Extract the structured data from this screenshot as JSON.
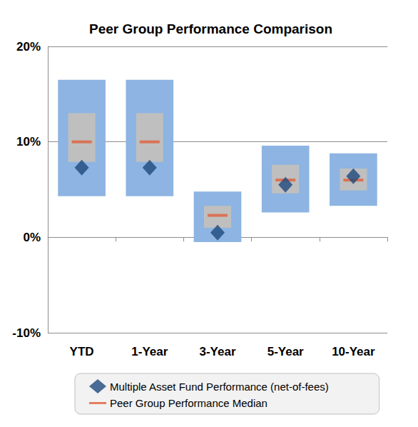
{
  "chart_data": {
    "type": "range_bar",
    "title": "Peer Group Performance Comparison",
    "categories": [
      "YTD",
      "1-Year",
      "3-Year",
      "5-Year",
      "10-Year"
    ],
    "ranges": [
      {
        "color": "#8DB4E2",
        "low": [
          4.3,
          4.3,
          -0.5,
          2.6,
          3.3
        ],
        "high": [
          16.5,
          16.5,
          4.8,
          9.6,
          8.8
        ]
      },
      {
        "color": "#BFBFBF",
        "low": [
          7.9,
          7.9,
          1.0,
          4.6,
          4.9
        ],
        "high": [
          13.0,
          13.0,
          3.3,
          7.6,
          7.2
        ]
      }
    ],
    "series": [
      {
        "name": "Multiple Asset Fund Performance (net-of-fees)",
        "type": "scatter",
        "marker": "diamond",
        "color": "#1F497D",
        "values": [
          7.3,
          7.3,
          0.5,
          5.5,
          6.4
        ]
      },
      {
        "name": "Peer Group Performance Median",
        "type": "scatter",
        "marker": "line",
        "color": "#E0603C",
        "values": [
          10.0,
          10.0,
          2.3,
          6.0,
          6.0
        ]
      }
    ],
    "ylim": [
      -10,
      20
    ],
    "yticks": [
      {
        "value": -10,
        "label": "-10%"
      },
      {
        "value": 0,
        "label": "0%"
      },
      {
        "value": 10,
        "label": "10%"
      },
      {
        "value": 20,
        "label": "20%"
      }
    ],
    "grid": true,
    "legend": "bottom"
  }
}
